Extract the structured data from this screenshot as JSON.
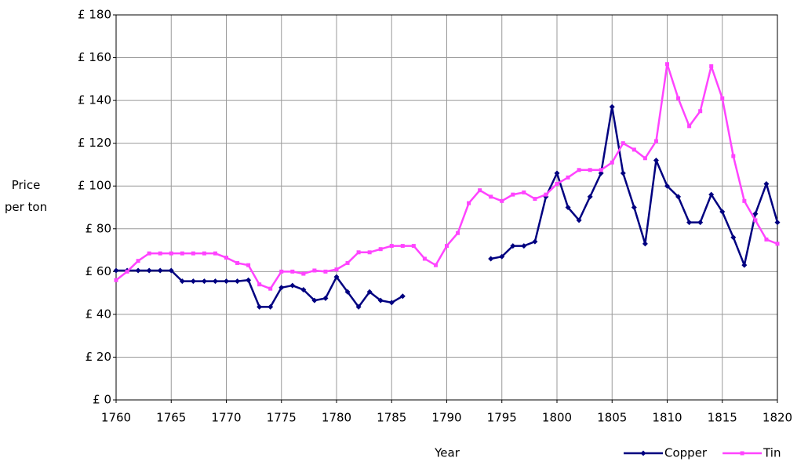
{
  "chart_data": {
    "type": "line",
    "xlabel": "Year",
    "ylabel": "Price per ton",
    "x": [
      1760,
      1761,
      1762,
      1763,
      1764,
      1765,
      1766,
      1767,
      1768,
      1769,
      1770,
      1771,
      1772,
      1773,
      1774,
      1775,
      1776,
      1777,
      1778,
      1779,
      1780,
      1781,
      1782,
      1783,
      1784,
      1785,
      1786,
      1787,
      1788,
      1789,
      1790,
      1791,
      1792,
      1793,
      1794,
      1795,
      1796,
      1797,
      1798,
      1799,
      1800,
      1801,
      1802,
      1803,
      1804,
      1805,
      1806,
      1807,
      1808,
      1809,
      1810,
      1811,
      1812,
      1813,
      1814,
      1815,
      1816,
      1817,
      1818,
      1819,
      1820
    ],
    "series": [
      {
        "name": "Copper",
        "color": "#000080",
        "marker": "diamond",
        "values": [
          60.5,
          60.5,
          60.5,
          60.5,
          60.5,
          60.5,
          55.5,
          55.5,
          55.5,
          55.5,
          55.5,
          55.5,
          56,
          43.5,
          43.5,
          52.5,
          53.5,
          51.5,
          46.5,
          47.5,
          57.5,
          50.5,
          43.5,
          50.5,
          46.5,
          45.5,
          48.5,
          null,
          null,
          null,
          null,
          null,
          null,
          null,
          66,
          67,
          72,
          72,
          74,
          95,
          106,
          90,
          84,
          95,
          106,
          137,
          106,
          90,
          73,
          112,
          100,
          95,
          83,
          83,
          96,
          88,
          76,
          63,
          87,
          101,
          83
        ]
      },
      {
        "name": "Tin",
        "color": "#ff44ff",
        "marker": "square",
        "values": [
          56,
          60,
          65,
          68.5,
          68.5,
          68.5,
          68.5,
          68.5,
          68.5,
          68.5,
          66.5,
          64,
          63,
          54,
          52,
          60,
          60,
          59,
          60.5,
          60,
          61,
          64,
          69,
          69,
          70.5,
          72,
          72,
          72,
          66,
          63,
          72,
          78,
          92,
          98,
          95,
          93,
          96,
          97,
          94,
          96,
          101,
          104,
          107.5,
          107.5,
          107.5,
          111,
          120,
          117,
          113,
          121,
          157,
          141,
          128,
          135,
          156,
          141,
          114,
          93,
          84,
          75,
          73
        ]
      }
    ],
    "xlim": [
      1760,
      1820
    ],
    "xticks": [
      1760,
      1765,
      1770,
      1775,
      1780,
      1785,
      1790,
      1795,
      1800,
      1805,
      1810,
      1815,
      1820
    ],
    "ylim": [
      0,
      180
    ],
    "yticks": [
      {
        "value": 0,
        "label": "£ 0"
      },
      {
        "value": 20,
        "label": "£ 20"
      },
      {
        "value": 40,
        "label": "£ 40"
      },
      {
        "value": 60,
        "label": "£ 60"
      },
      {
        "value": 80,
        "label": "£ 80"
      },
      {
        "value": 100,
        "label": "£ 100"
      },
      {
        "value": 120,
        "label": "£ 120"
      },
      {
        "value": 140,
        "label": "£ 140"
      },
      {
        "value": 160,
        "label": "£ 160"
      },
      {
        "value": 180,
        "label": "£ 180"
      }
    ],
    "grid": true,
    "legend": "bottom-right"
  }
}
